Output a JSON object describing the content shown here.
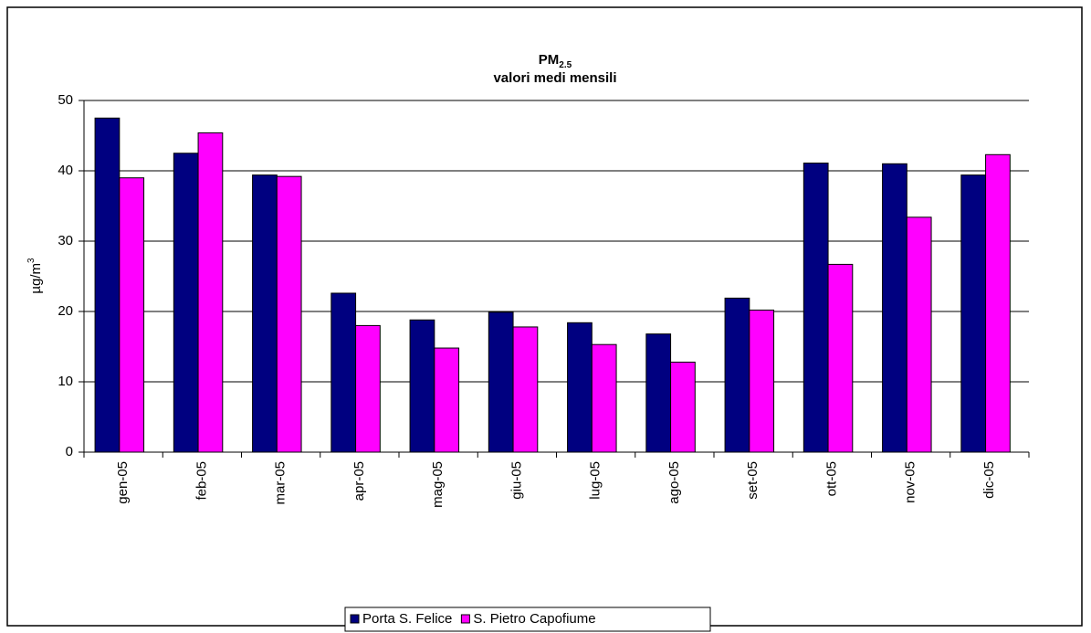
{
  "chart_data": {
    "type": "bar",
    "title": "PM",
    "title_subscript": "2.5",
    "subtitle": "valori medi mensili",
    "ylabel": "µg/m",
    "ylabel_superscript": "3",
    "categories": [
      "gen-05",
      "feb-05",
      "mar-05",
      "apr-05",
      "mag-05",
      "giu-05",
      "lug-05",
      "ago-05",
      "set-05",
      "ott-05",
      "nov-05",
      "dic-05"
    ],
    "series": [
      {
        "name": "Porta S. Felice",
        "color": "#000080",
        "values": [
          47.5,
          42.5,
          39.4,
          22.6,
          18.8,
          19.9,
          18.4,
          16.8,
          21.9,
          41.1,
          41.0,
          39.4
        ]
      },
      {
        "name": "S. Pietro Capofiume",
        "color": "#ff00ff",
        "values": [
          39.0,
          45.4,
          39.2,
          18.0,
          14.8,
          17.8,
          15.3,
          12.8,
          20.2,
          26.7,
          33.4,
          42.3
        ]
      }
    ],
    "ylim": [
      0,
      50
    ],
    "yticks": [
      0,
      10,
      20,
      30,
      40,
      50
    ],
    "grid": true,
    "legend": "bottom"
  }
}
